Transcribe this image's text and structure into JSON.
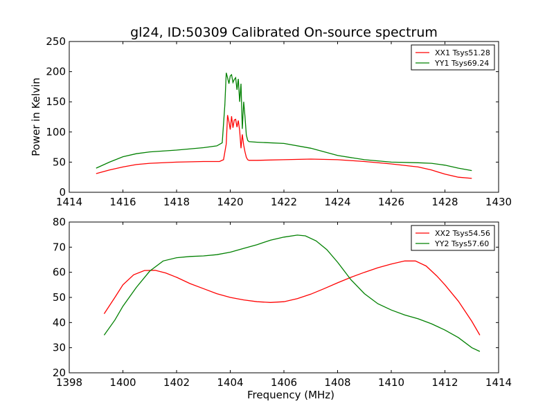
{
  "title": "gl24, ID:50309 Calibrated On-source spectrum",
  "colors": {
    "xx": "#ff0000",
    "yy": "#008000"
  },
  "chart_data": [
    {
      "type": "line",
      "xlabel": "",
      "ylabel": "Power in Kelvin",
      "xlim": [
        1414,
        1430
      ],
      "ylim": [
        0,
        250
      ],
      "xticks": [
        1414,
        1416,
        1418,
        1420,
        1422,
        1424,
        1426,
        1428,
        1430
      ],
      "yticks": [
        0,
        50,
        100,
        150,
        200,
        250
      ],
      "grid": false,
      "legend_position": "top-right",
      "series": [
        {
          "name": "XX1 Tsys51.28",
          "color": "#ff0000",
          "x": [
            1415.0,
            1415.5,
            1416.0,
            1416.5,
            1417.0,
            1418.0,
            1419.0,
            1419.6,
            1419.75,
            1419.85,
            1419.9,
            1419.95,
            1420.0,
            1420.05,
            1420.1,
            1420.15,
            1420.2,
            1420.25,
            1420.3,
            1420.35,
            1420.4,
            1420.45,
            1420.5,
            1420.55,
            1420.6,
            1420.65,
            1420.7,
            1421.0,
            1422.0,
            1423.0,
            1424.0,
            1425.0,
            1426.0,
            1427.0,
            1427.5,
            1428.0,
            1428.5,
            1429.0
          ],
          "y": [
            31,
            37,
            42,
            46,
            48,
            50,
            51,
            51,
            54,
            80,
            128,
            117,
            104,
            126,
            107,
            120,
            121,
            108,
            119,
            102,
            73,
            96,
            78,
            67,
            58,
            54,
            53,
            53,
            54,
            55,
            54,
            51,
            47,
            42,
            37,
            30,
            25,
            23
          ]
        },
        {
          "name": "YY1 Tsys69.24",
          "color": "#008000",
          "x": [
            1415.0,
            1415.5,
            1416.0,
            1416.5,
            1417.0,
            1418.0,
            1419.0,
            1419.5,
            1419.7,
            1419.8,
            1419.85,
            1419.9,
            1419.95,
            1420.0,
            1420.05,
            1420.1,
            1420.15,
            1420.2,
            1420.25,
            1420.3,
            1420.35,
            1420.4,
            1420.45,
            1420.5,
            1420.55,
            1420.6,
            1420.65,
            1420.7,
            1421.0,
            1422.0,
            1423.0,
            1424.0,
            1425.0,
            1426.0,
            1427.0,
            1427.5,
            1428.0,
            1428.5,
            1429.0
          ],
          "y": [
            40,
            50,
            59,
            64,
            67,
            70,
            74,
            77,
            82,
            145,
            198,
            190,
            180,
            193,
            195,
            182,
            187,
            190,
            170,
            188,
            150,
            180,
            105,
            150,
            125,
            95,
            86,
            84,
            83,
            81,
            73,
            61,
            54,
            50,
            49,
            48,
            45,
            40,
            36
          ]
        }
      ]
    },
    {
      "type": "line",
      "xlabel": "Frequency (MHz)",
      "ylabel": "",
      "xlim": [
        1398,
        1414
      ],
      "ylim": [
        20,
        80
      ],
      "xticks": [
        1398,
        1400,
        1402,
        1404,
        1406,
        1408,
        1410,
        1412,
        1414
      ],
      "yticks": [
        20,
        30,
        40,
        50,
        60,
        70,
        80
      ],
      "grid": false,
      "legend_position": "top-right",
      "series": [
        {
          "name": "XX2 Tsys54.56",
          "color": "#ff0000",
          "x": [
            1399.3,
            1399.7,
            1400.0,
            1400.4,
            1400.8,
            1401.2,
            1401.6,
            1402.0,
            1402.5,
            1403.0,
            1403.5,
            1404.0,
            1404.5,
            1405.0,
            1405.5,
            1406.0,
            1406.5,
            1407.0,
            1407.5,
            1408.0,
            1408.5,
            1409.0,
            1409.5,
            1410.0,
            1410.5,
            1410.9,
            1411.3,
            1411.7,
            1412.0,
            1412.5,
            1413.0,
            1413.3
          ],
          "y": [
            43.5,
            50,
            55,
            59,
            60.7,
            60.8,
            59.7,
            58,
            55.5,
            53.5,
            51.5,
            50,
            49,
            48.3,
            48,
            48.3,
            49.5,
            51.3,
            53.5,
            55.8,
            58,
            60,
            61.8,
            63.3,
            64.5,
            64.5,
            62.5,
            58.5,
            55,
            48.5,
            40.5,
            35
          ]
        },
        {
          "name": "YY2 Tsys57.60",
          "color": "#008000",
          "x": [
            1399.3,
            1399.7,
            1400.0,
            1400.5,
            1401.0,
            1401.5,
            1402.0,
            1402.5,
            1403.0,
            1403.5,
            1404.0,
            1404.5,
            1405.0,
            1405.5,
            1406.0,
            1406.5,
            1406.8,
            1407.2,
            1407.6,
            1408.0,
            1408.5,
            1409.0,
            1409.5,
            1410.0,
            1410.5,
            1411.0,
            1411.5,
            1412.0,
            1412.5,
            1413.0,
            1413.3
          ],
          "y": [
            35,
            41,
            46.5,
            54,
            60.5,
            64.5,
            65.8,
            66.3,
            66.5,
            67,
            68,
            69.5,
            71,
            72.8,
            74,
            74.8,
            74.5,
            72.5,
            69,
            64,
            57,
            51.5,
            47.5,
            45,
            43,
            41.5,
            39.5,
            37,
            34,
            30,
            28.5
          ]
        }
      ]
    }
  ]
}
